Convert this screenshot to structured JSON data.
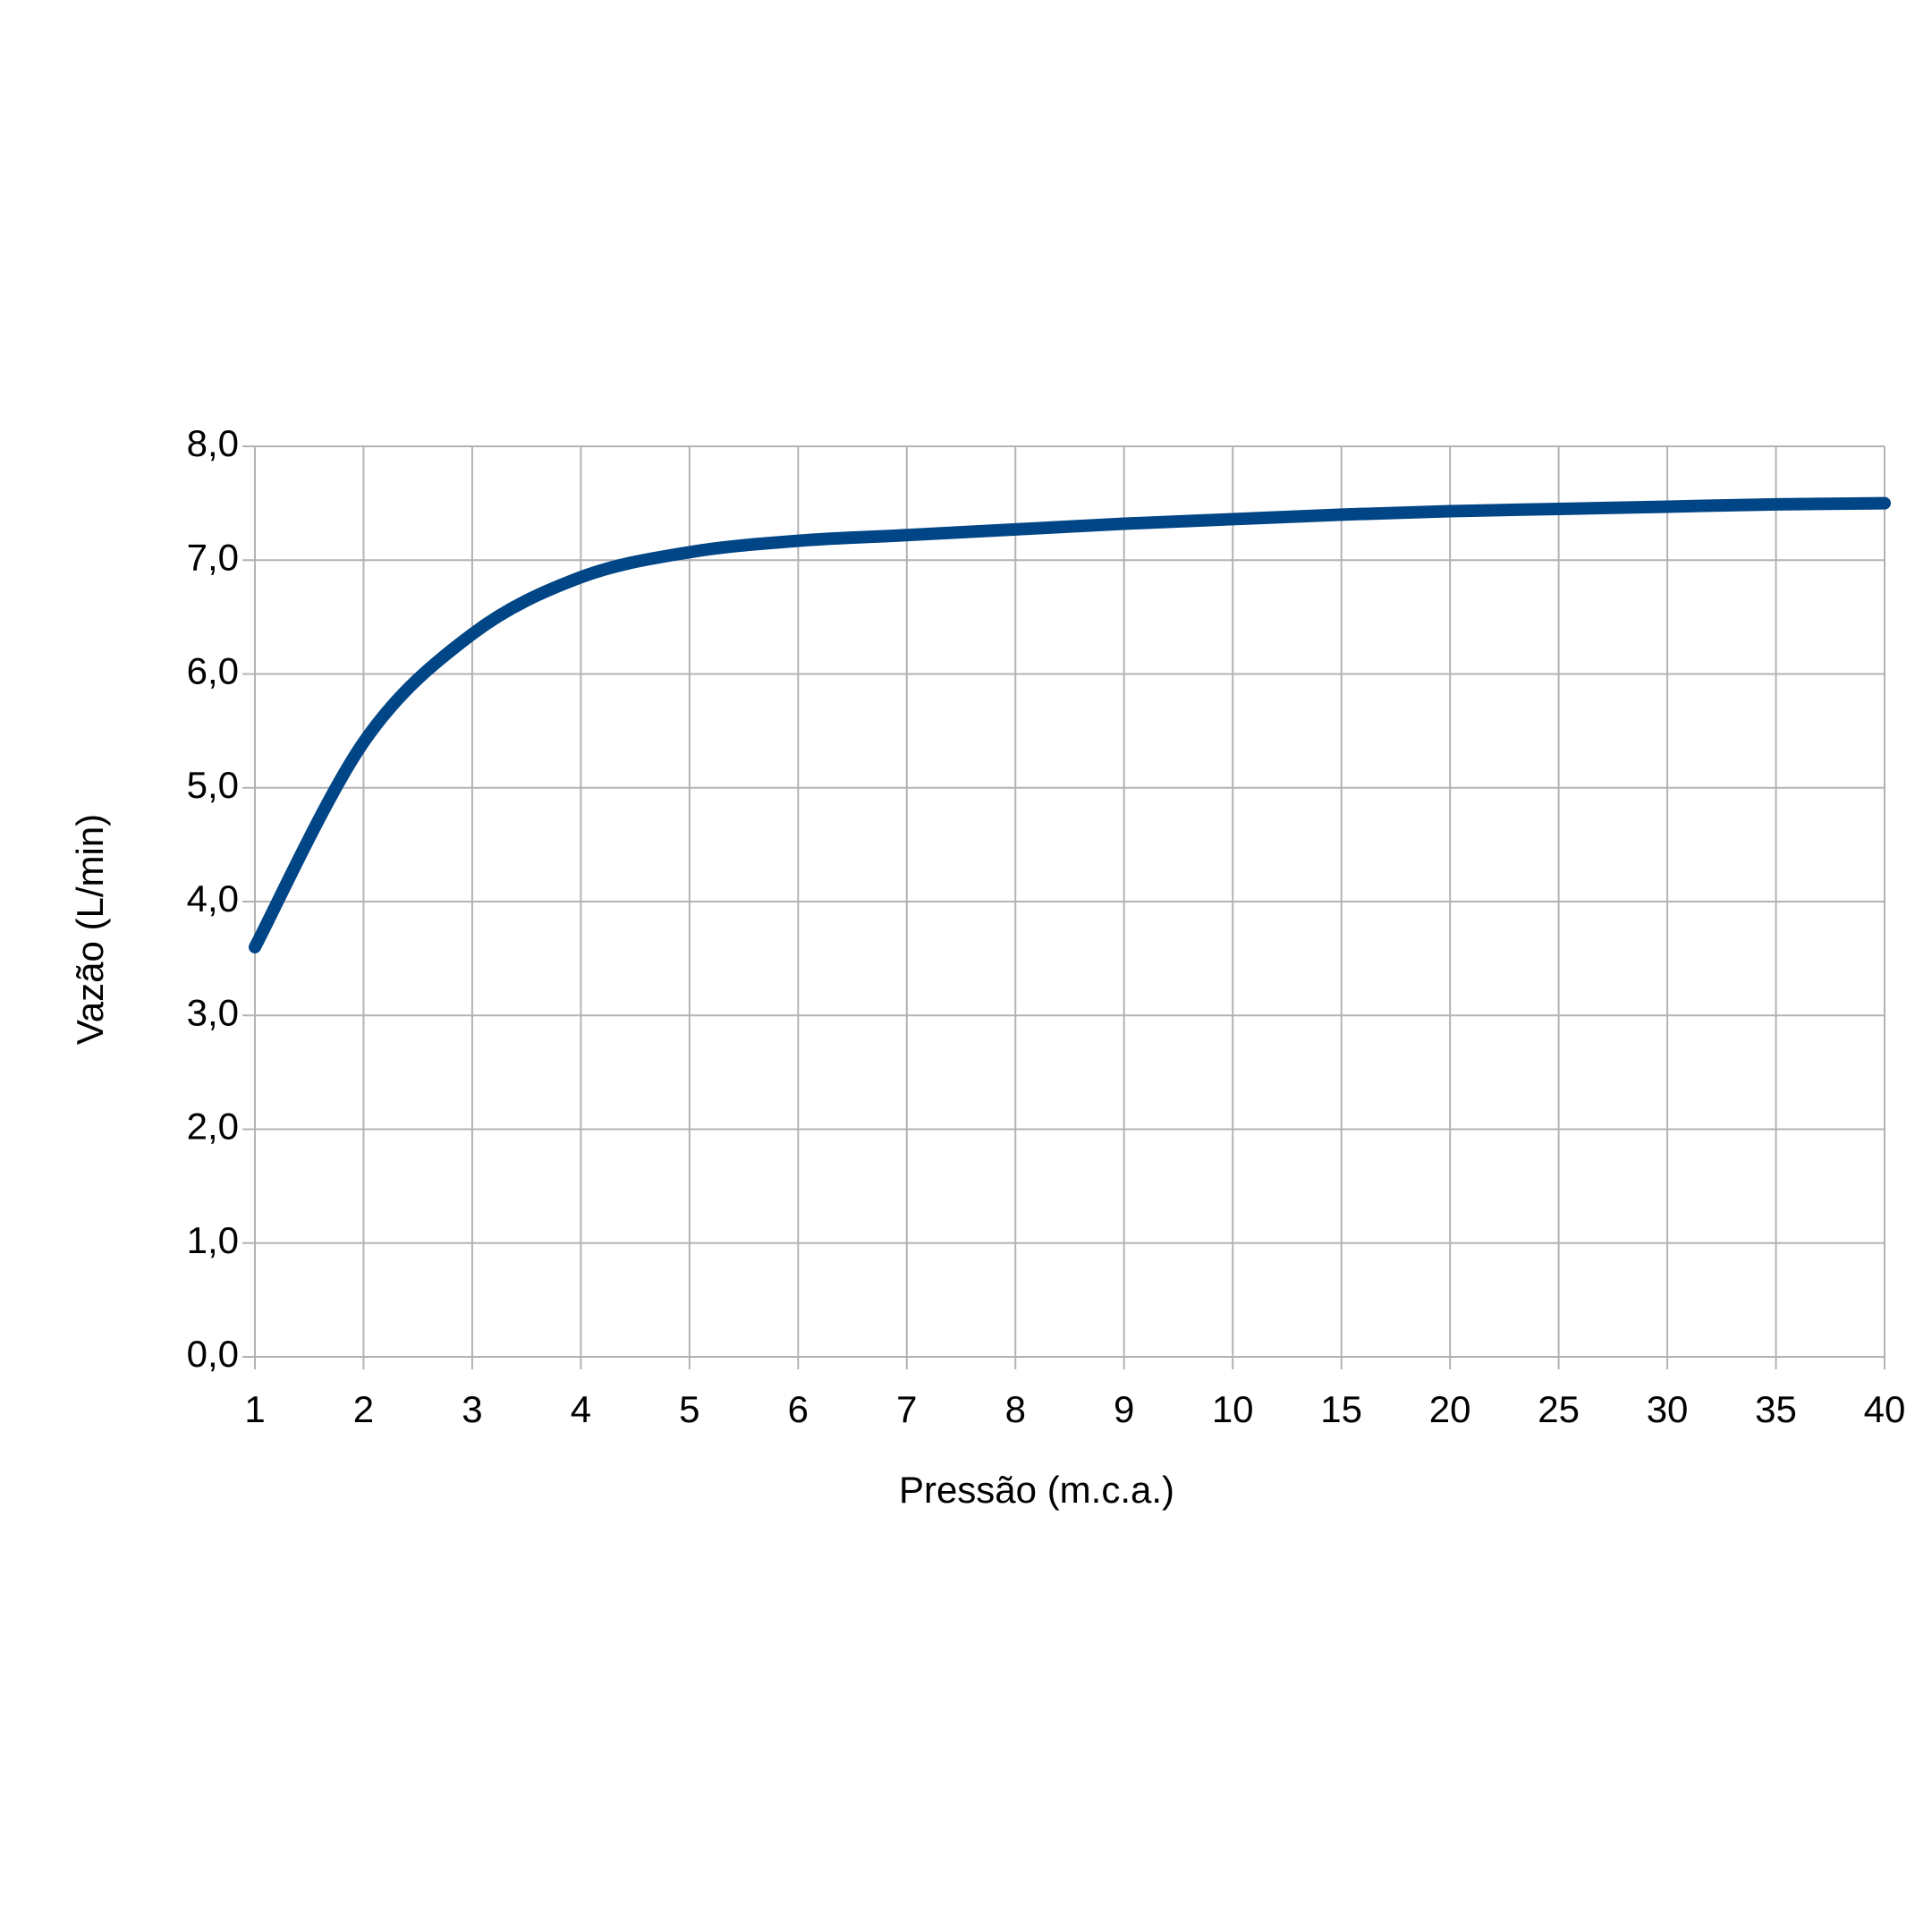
{
  "chart_data": {
    "type": "line",
    "x_label": "Pressão (m.c.a.)",
    "y_label": "Vazão (L/min)",
    "categories": [
      "1",
      "2",
      "3",
      "4",
      "5",
      "6",
      "7",
      "8",
      "9",
      "10",
      "15",
      "20",
      "25",
      "30",
      "35",
      "40"
    ],
    "series": [
      {
        "name": "Vazão",
        "color": "#004586",
        "values": [
          3.6,
          5.4,
          6.35,
          6.85,
          7.07,
          7.17,
          7.22,
          7.27,
          7.32,
          7.36,
          7.4,
          7.43,
          7.45,
          7.47,
          7.49,
          7.5
        ]
      }
    ],
    "ylim": [
      0,
      8
    ],
    "yticks": [
      {
        "value": 0,
        "label": "0,0"
      },
      {
        "value": 1,
        "label": "1,0"
      },
      {
        "value": 2,
        "label": "2,0"
      },
      {
        "value": 3,
        "label": "3,0"
      },
      {
        "value": 4,
        "label": "4,0"
      },
      {
        "value": 5,
        "label": "5,0"
      },
      {
        "value": 6,
        "label": "6,0"
      },
      {
        "value": 7,
        "label": "7,0"
      },
      {
        "value": 8,
        "label": "8,0"
      }
    ],
    "grid": true
  }
}
